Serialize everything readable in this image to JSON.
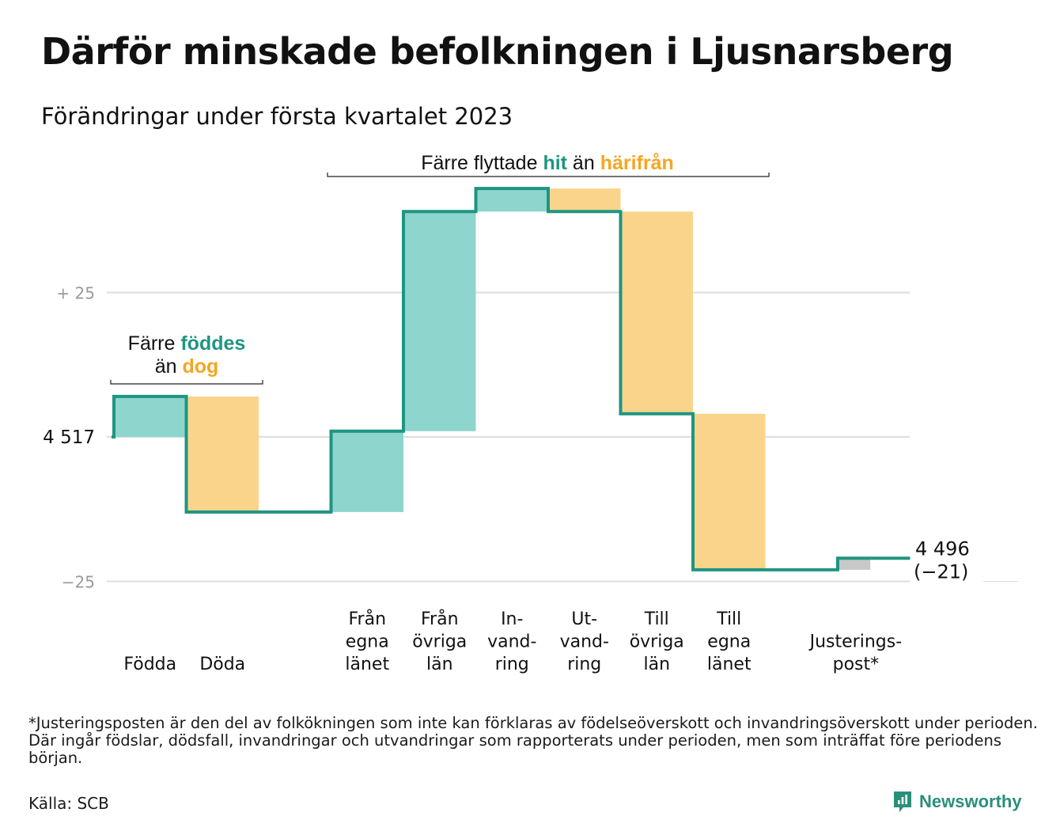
{
  "header": {
    "title": "Därför minskade befolkningen i Ljusnarsberg",
    "subtitle": "Förändringar under första kvartalet 2023"
  },
  "colors": {
    "increase": "#8dd5cd",
    "decrease": "#fad48a",
    "adjustment": "#c8c8c8",
    "line": "#1f9581",
    "teal_text": "#1f9581",
    "orange_text": "#f5a623",
    "grid": "#dddddd"
  },
  "chart_data": {
    "type": "waterfall",
    "start": 4517,
    "end": 4496,
    "end_label": "4 496",
    "end_change_label": "(−21)",
    "start_label": "4 517",
    "y_tick_labels": [
      "+ 25",
      "−25"
    ],
    "ylim": [
      -25,
      25
    ],
    "steps": [
      {
        "key": "fodda",
        "label_lines": [
          "Födda"
        ],
        "value": 7,
        "kind": "increase"
      },
      {
        "key": "doda",
        "label_lines": [
          "Döda"
        ],
        "value": -20,
        "kind": "decrease"
      },
      {
        "key": "gap",
        "label_lines": [],
        "value": 0,
        "kind": "gap"
      },
      {
        "key": "fran_egna",
        "label_lines": [
          "Från",
          "egna",
          "länet"
        ],
        "value": 14,
        "kind": "increase"
      },
      {
        "key": "fran_ovriga",
        "label_lines": [
          "Från",
          "övriga",
          "län"
        ],
        "value": 38,
        "kind": "increase"
      },
      {
        "key": "invandring",
        "label_lines": [
          "In-",
          "vand-",
          "ring"
        ],
        "value": 4,
        "kind": "increase"
      },
      {
        "key": "utvandring",
        "label_lines": [
          "Ut-",
          "vand-",
          "ring"
        ],
        "value": -4,
        "kind": "decrease"
      },
      {
        "key": "till_ovriga",
        "label_lines": [
          "Till",
          "övriga",
          "län"
        ],
        "value": -35,
        "kind": "decrease"
      },
      {
        "key": "till_egna",
        "label_lines": [
          "Till",
          "egna",
          "länet"
        ],
        "value": -27,
        "kind": "decrease"
      },
      {
        "key": "gap2",
        "label_lines": [],
        "value": 0,
        "kind": "gap"
      },
      {
        "key": "justering",
        "label_lines": [
          "Justerings-",
          "post*"
        ],
        "value": 2,
        "kind": "adjustment"
      }
    ],
    "annotations": [
      {
        "key": "birth",
        "parts": [
          [
            "Färre ",
            "plain"
          ],
          [
            "föddes",
            "teal"
          ],
          [
            "|",
            "break"
          ],
          [
            "än ",
            "plain"
          ],
          [
            "dog",
            "orange"
          ]
        ]
      },
      {
        "key": "migration",
        "parts": [
          [
            "Färre flyttade ",
            "plain"
          ],
          [
            "hit",
            "teal"
          ],
          [
            " än ",
            "plain"
          ],
          [
            "härifrån",
            "orange"
          ]
        ]
      }
    ]
  },
  "footer": {
    "footnote": "*Justeringsposten är den del av folkökningen som inte kan förklaras av födelseöverskott och invandringsöverskott under perioden. Där ingår födslar, dödsfall, invandringar och utvandringar som rapporterats under perioden, men som inträffat före periodens början.",
    "source": "Källa: SCB",
    "brand": "Newsworthy",
    "brand_icon": "newsworthy-logo-icon"
  }
}
